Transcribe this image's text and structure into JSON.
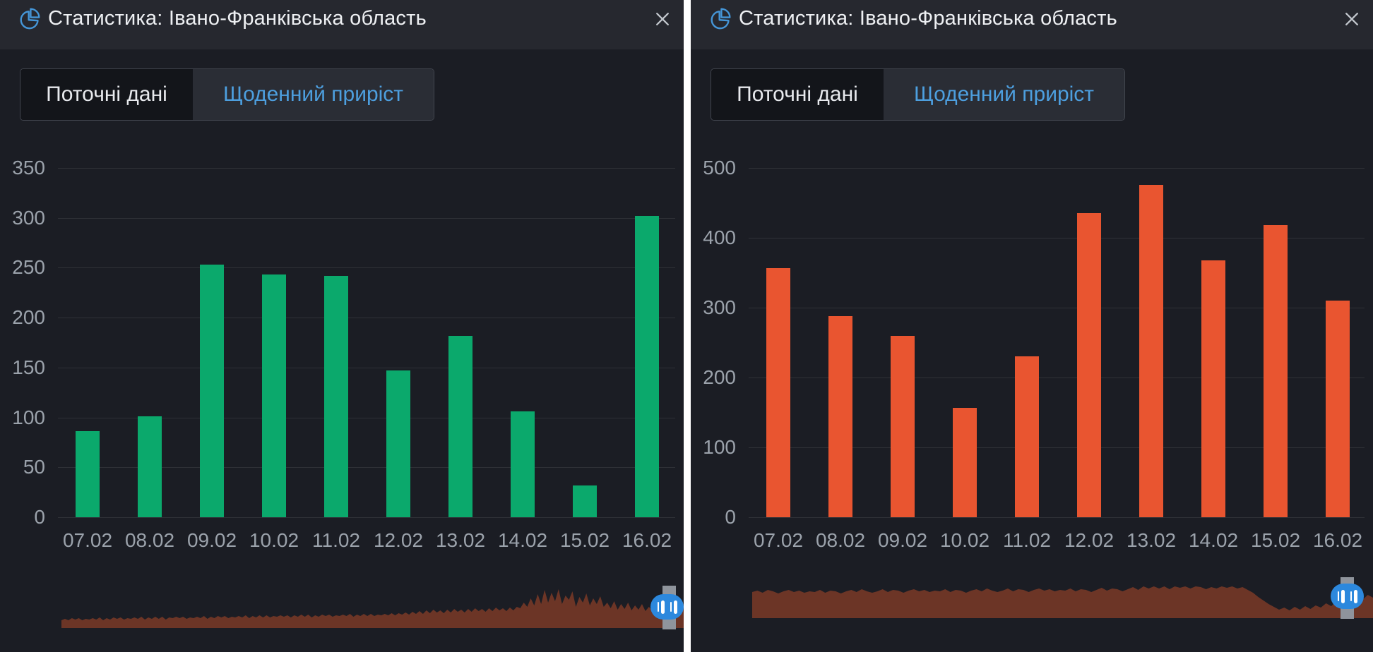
{
  "colors": {
    "header-bg": "#26282f",
    "body-bg": "#1b1d24",
    "divider": "#ffffff",
    "title-text": "#eef0f3",
    "icon-blue": "#4596d8",
    "close-gray": "#c2c7cd",
    "tab-border": "#41454e",
    "tab-inactive-bg": "#13151a",
    "tab-inactive-text": "#e8eaee",
    "tab-active-bg": "#2a2d35",
    "tab-active-text": "#4d9fdf",
    "axis-text": "#9ba2ab",
    "grid-line": "rgba(255,255,255,0.09)",
    "handle-bar": "#8f949c",
    "handle-pill": "#2c88dd"
  },
  "panels": [
    {
      "title": "Статистика: Івано-Франківська область",
      "tabs": [
        {
          "label": "Поточні дані",
          "active": false
        },
        {
          "label": "Щоденний приріст",
          "active": true
        }
      ],
      "chart_data": {
        "type": "bar",
        "categories": [
          "07.02",
          "08.02",
          "09.02",
          "10.02",
          "11.02",
          "12.02",
          "13.02",
          "14.02",
          "15.02",
          "16.02"
        ],
        "values": [
          86,
          101,
          253,
          243,
          242,
          147,
          182,
          106,
          32,
          302
        ],
        "title": "",
        "xlabel": "",
        "ylabel": "",
        "ylim": [
          0,
          350
        ],
        "ystep": 50,
        "bar_color": "#0ba96c",
        "grid": true,
        "legend": false
      },
      "sparkline": {
        "color": "#6c3526",
        "values": [
          11,
          13,
          11,
          14,
          12,
          14,
          11,
          13,
          12,
          14,
          12,
          15,
          11,
          14,
          12,
          15,
          13,
          15,
          12,
          14,
          13,
          15,
          13,
          16,
          12,
          15,
          13,
          16,
          13,
          16,
          12,
          15,
          14,
          16,
          14,
          16,
          13,
          15,
          14,
          16,
          14,
          17,
          13,
          16,
          14,
          17,
          15,
          17,
          14,
          16,
          15,
          17,
          15,
          18,
          14,
          17,
          15,
          18,
          15,
          18,
          15,
          17,
          16,
          18,
          16,
          18,
          15,
          18,
          16,
          19,
          16,
          19,
          15,
          18,
          16,
          19,
          17,
          19,
          16,
          18,
          17,
          19,
          17,
          20,
          16,
          19,
          17,
          20,
          17,
          20,
          17,
          19,
          18,
          20,
          18,
          21,
          18,
          21,
          19,
          22,
          19,
          23,
          20,
          24,
          20,
          25,
          21,
          26,
          22,
          25,
          21,
          26,
          22,
          27,
          23,
          26,
          22,
          27,
          23,
          28,
          24,
          27,
          23,
          28,
          24,
          29,
          25,
          28,
          24,
          29,
          25,
          30,
          28,
          36,
          30,
          42,
          32,
          48,
          34,
          54,
          36,
          50,
          38,
          55,
          34,
          46,
          40,
          52,
          30,
          44,
          36,
          49,
          32,
          42,
          34,
          45,
          30,
          36,
          28,
          38,
          26,
          34,
          27,
          36,
          25,
          32,
          26,
          34,
          24,
          30,
          25,
          32,
          23,
          28,
          24,
          30,
          22,
          27,
          23,
          26
        ]
      }
    },
    {
      "title": "Статистика: Івано-Франківська область",
      "tabs": [
        {
          "label": "Поточні дані",
          "active": false
        },
        {
          "label": "Щоденний приріст",
          "active": true
        }
      ],
      "chart_data": {
        "type": "bar",
        "categories": [
          "07.02",
          "08.02",
          "09.02",
          "10.02",
          "11.02",
          "12.02",
          "13.02",
          "14.02",
          "15.02",
          "16.02"
        ],
        "values": [
          357,
          288,
          260,
          157,
          230,
          435,
          476,
          368,
          418,
          310
        ],
        "title": "",
        "xlabel": "",
        "ylabel": "",
        "ylim": [
          0,
          500
        ],
        "ystep": 100,
        "bar_color": "#e95530",
        "grid": true,
        "legend": false
      },
      "sparkline": {
        "color": "#6c3526",
        "values": [
          37,
          39,
          36,
          40,
          38,
          35,
          38,
          40,
          37,
          39,
          36,
          38,
          37,
          40,
          36,
          39,
          38,
          35,
          38,
          40,
          37,
          41,
          38,
          36,
          38,
          41,
          37,
          40,
          39,
          36,
          39,
          41,
          38,
          40,
          37,
          39,
          38,
          41,
          37,
          40,
          39,
          36,
          39,
          41,
          38,
          42,
          39,
          37,
          39,
          42,
          38,
          41,
          40,
          37,
          40,
          42,
          39,
          41,
          38,
          40,
          39,
          42,
          38,
          41,
          40,
          37,
          40,
          43,
          39,
          42,
          41,
          38,
          41,
          44,
          40,
          45,
          42,
          46,
          42,
          45,
          41,
          46,
          43,
          45,
          42,
          46,
          44,
          41,
          44,
          42,
          46,
          43,
          45,
          42,
          44,
          40,
          36,
          30,
          25,
          20,
          16,
          12,
          15,
          11,
          16,
          12,
          17,
          13,
          18,
          15,
          21,
          17,
          24,
          20,
          27,
          23,
          30,
          26,
          33,
          29
        ]
      }
    }
  ]
}
